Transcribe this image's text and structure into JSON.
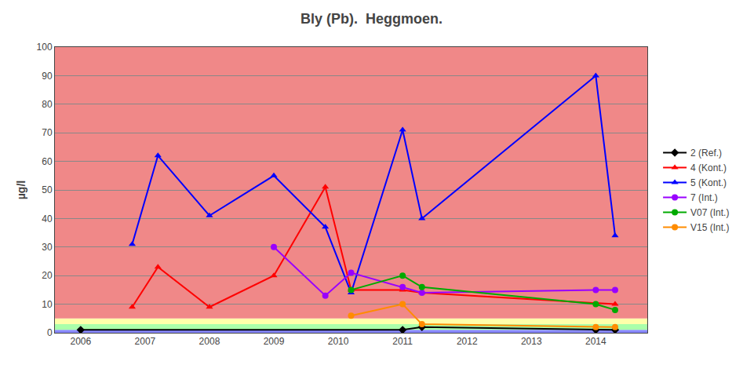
{
  "chart_data": {
    "type": "line",
    "title": "Bly (Pb).  Heggmoen.",
    "ylabel": "µg/l",
    "xlim": [
      2005.6,
      2014.8
    ],
    "ylim": [
      0,
      100
    ],
    "xticks": [
      2006,
      2007,
      2008,
      2009,
      2010,
      2011,
      2012,
      2013,
      2014
    ],
    "yticks": [
      0,
      10,
      20,
      30,
      40,
      50,
      60,
      70,
      80,
      90,
      100
    ],
    "grid": "y",
    "legend": "right",
    "zones": [
      {
        "from": 0,
        "to": 1,
        "color": "#8888FF"
      },
      {
        "from": 1,
        "to": 3,
        "color": "#AAFFAA"
      },
      {
        "from": 3,
        "to": 5,
        "color": "#FFFFAA"
      },
      {
        "from": 5,
        "to": 100,
        "color": "#F08888"
      }
    ],
    "series": [
      {
        "name": "2 (Ref.)",
        "color": "#000000",
        "marker": "diamond",
        "x": [
          2006,
          2011,
          2011.3,
          2014,
          2014.3
        ],
        "values": [
          1,
          1,
          2,
          1,
          1
        ]
      },
      {
        "name": "4 (Kont.)",
        "color": "#FF0000",
        "marker": "triangle-up",
        "x": [
          2006.8,
          2007.2,
          2008,
          2009,
          2009.8,
          2010.2,
          2011,
          2011.3,
          2014.3
        ],
        "values": [
          9,
          23,
          9,
          20,
          51,
          15,
          15,
          14,
          10
        ]
      },
      {
        "name": "5 (Kont.)",
        "color": "#0000FF",
        "marker": "triangle-up",
        "x": [
          2006.8,
          2007.2,
          2008,
          2009,
          2009.8,
          2010.2,
          2011,
          2011.3,
          2014,
          2014.3
        ],
        "values": [
          31,
          62,
          41,
          55,
          37,
          14,
          71,
          40,
          90,
          34
        ]
      },
      {
        "name": "7 (Int.)",
        "color": "#9900FF",
        "marker": "circle",
        "x": [
          2009,
          2009.8,
          2010.2,
          2011,
          2011.3,
          2014,
          2014.3
        ],
        "values": [
          30,
          13,
          21,
          16,
          14,
          15,
          15
        ]
      },
      {
        "name": "V07 (Int.)",
        "color": "#00AA00",
        "marker": "circle",
        "x": [
          2010.2,
          2011,
          2011.3,
          2014,
          2014.3
        ],
        "values": [
          15,
          20,
          16,
          10,
          8
        ]
      },
      {
        "name": "V15 (Int.)",
        "color": "#FF8C00",
        "marker": "circle",
        "x": [
          2010.2,
          2011,
          2011.3,
          2014,
          2014.3
        ],
        "values": [
          6,
          10,
          3,
          2,
          2
        ]
      }
    ]
  }
}
